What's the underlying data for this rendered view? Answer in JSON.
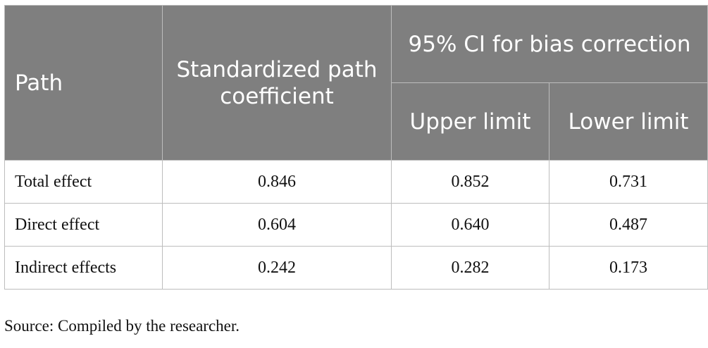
{
  "table": {
    "headers": {
      "path": "Path",
      "coefficient": "Standardized path coefficient",
      "ci_group": "95% CI for bias correction",
      "upper": "Upper limit",
      "lower": "Lower limit"
    },
    "rows": [
      {
        "path": "Total effect",
        "coefficient": "0.846",
        "upper": "0.852",
        "lower": "0.731"
      },
      {
        "path": "Direct effect",
        "coefficient": "0.604",
        "upper": "0.640",
        "lower": "0.487"
      },
      {
        "path": "Indirect effects",
        "coefficient": "0.242",
        "upper": "0.282",
        "lower": "0.173"
      }
    ]
  },
  "source_note": "Source: Compiled by the researcher."
}
